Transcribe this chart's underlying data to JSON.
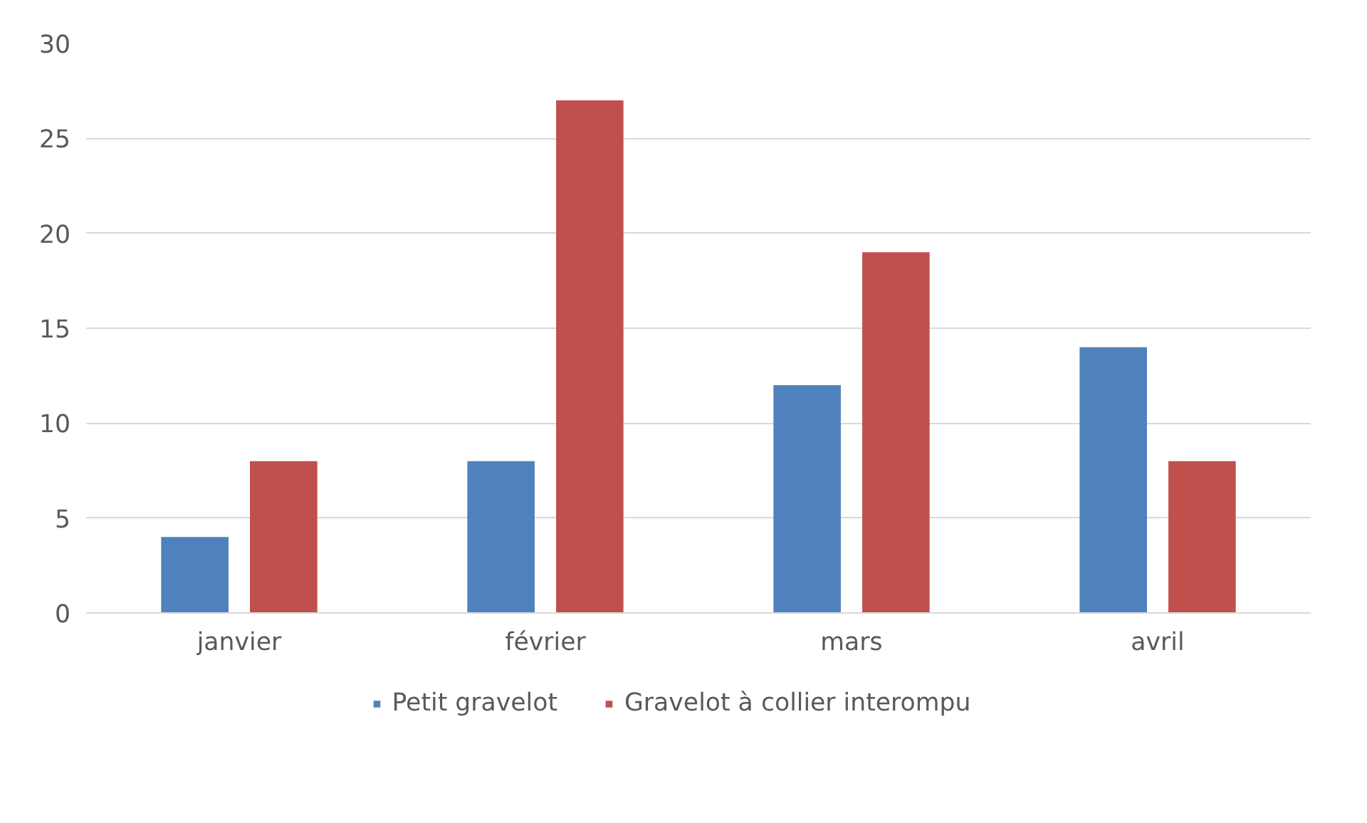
{
  "chart_data": {
    "type": "bar",
    "categories": [
      "janvier",
      "février",
      "mars",
      "avril"
    ],
    "series": [
      {
        "name": "Petit gravelot",
        "color": "#4f81bd",
        "values": [
          4,
          8,
          12,
          14
        ]
      },
      {
        "name": "Gravelot à collier interompu",
        "color": "#c0504d",
        "values": [
          8,
          27,
          19,
          8
        ]
      }
    ],
    "ylim": [
      0,
      30
    ],
    "yticks": [
      0,
      5,
      10,
      15,
      20,
      25,
      30
    ],
    "grid": "y",
    "legend": "bottom"
  }
}
